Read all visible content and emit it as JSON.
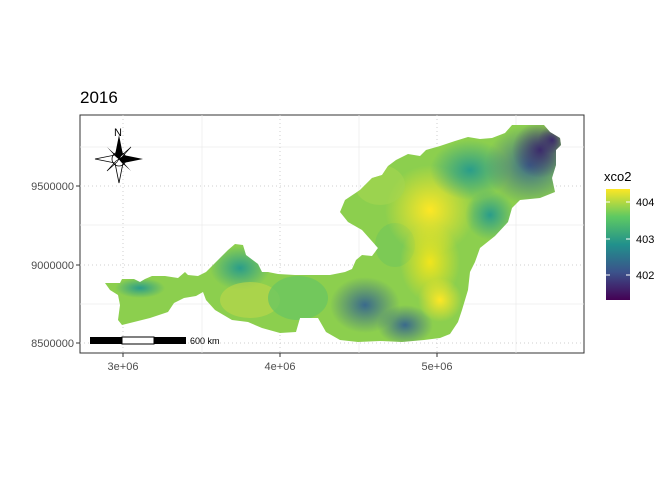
{
  "map": {
    "title": "2016",
    "north_label": "N",
    "scale_label": "600 km",
    "x_ticks": [
      "3e+06",
      "4e+06",
      "5e+06"
    ],
    "y_ticks": [
      "8500000",
      "9000000",
      "9500000"
    ],
    "legend": {
      "title": "xco2",
      "labels": [
        "404",
        "403",
        "402"
      ],
      "colors": [
        "#fde725",
        "#5ec962",
        "#21918c",
        "#3b528b",
        "#440154"
      ]
    }
  }
}
